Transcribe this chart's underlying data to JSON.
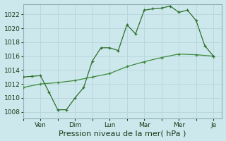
{
  "background_color": "#cde8ec",
  "grid_color": "#b8d8dc",
  "line_color1": "#2d6e2d",
  "line_color2": "#3d8a3d",
  "title": "Pression niveau de la mer( hPa )",
  "xtick_labels": [
    "Ven",
    "Dim",
    "Lun",
    "Mar",
    "Mer",
    "Je"
  ],
  "xtick_positions": [
    2,
    6,
    10,
    14,
    18,
    22
  ],
  "ylim": [
    1007.0,
    1023.5
  ],
  "yticks": [
    1008,
    1010,
    1012,
    1014,
    1016,
    1018,
    1020,
    1022
  ],
  "series1_x": [
    0,
    1,
    2,
    3,
    4,
    5,
    6,
    7,
    8,
    9,
    10,
    11,
    12,
    13,
    14,
    15,
    16,
    17,
    18,
    19,
    20,
    21,
    22
  ],
  "series1_y": [
    1013.0,
    1013.1,
    1013.2,
    1010.8,
    1008.3,
    1008.3,
    1010.0,
    1011.5,
    1015.3,
    1017.2,
    1017.2,
    1016.8,
    1020.5,
    1019.2,
    1022.6,
    1022.8,
    1022.9,
    1023.2,
    1022.3,
    1022.6,
    1021.1,
    1017.5,
    1016.0
  ],
  "series2_x": [
    0,
    2,
    4,
    6,
    8,
    10,
    12,
    14,
    16,
    18,
    20,
    22
  ],
  "series2_y": [
    1011.5,
    1012.0,
    1012.2,
    1012.5,
    1013.0,
    1013.5,
    1014.5,
    1015.2,
    1015.8,
    1016.3,
    1016.2,
    1016.0
  ],
  "xlim": [
    0,
    23
  ],
  "ylabel_fontsize": 6.5,
  "xlabel_fontsize": 8.0,
  "tick_fontsize": 6.5
}
